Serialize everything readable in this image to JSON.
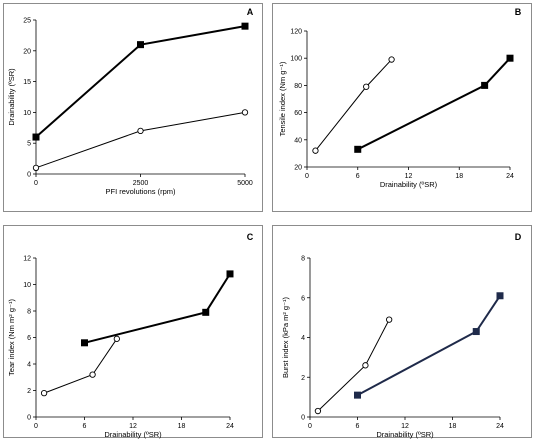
{
  "chart_data": [
    {
      "type": "line",
      "panel_label": "A",
      "xlabel": "PFI revolutions (rpm)",
      "ylabel": "Drainability (ºSR)",
      "xlim": [
        0,
        5000
      ],
      "ylim": [
        0,
        25
      ],
      "xticks": [
        0,
        2500,
        5000
      ],
      "yticks": [
        0,
        5,
        10,
        15,
        20,
        25
      ],
      "series": [
        {
          "marker": "square-filled",
          "color": "#000000",
          "linewidth": 2,
          "x": [
            0,
            2500,
            5000
          ],
          "y": [
            6,
            21,
            24
          ]
        },
        {
          "marker": "circle-open",
          "color": "#000000",
          "linewidth": 1,
          "x": [
            0,
            2500,
            5000
          ],
          "y": [
            1,
            7,
            10
          ]
        }
      ]
    },
    {
      "type": "line",
      "panel_label": "B",
      "xlabel": "Drainability (ºSR)",
      "ylabel": "Tensile index (Nm g⁻¹)",
      "xlim": [
        0,
        24
      ],
      "ylim": [
        20,
        120
      ],
      "xticks": [
        0,
        6,
        12,
        18,
        24
      ],
      "yticks": [
        20,
        40,
        60,
        80,
        100,
        120
      ],
      "series": [
        {
          "marker": "circle-open",
          "color": "#000000",
          "linewidth": 1,
          "x": [
            1,
            7,
            10
          ],
          "y": [
            32,
            79,
            99
          ]
        },
        {
          "marker": "square-filled",
          "color": "#000000",
          "linewidth": 2,
          "x": [
            6,
            21,
            24
          ],
          "y": [
            33,
            80,
            100
          ]
        }
      ]
    },
    {
      "type": "line",
      "panel_label": "C",
      "xlabel": "Drainability (ºSR)",
      "ylabel": "Tear index (Nm m² g⁻¹)",
      "xlim": [
        0,
        24
      ],
      "ylim": [
        0,
        12
      ],
      "xticks": [
        0,
        6,
        12,
        18,
        24
      ],
      "yticks": [
        0,
        2,
        4,
        6,
        8,
        10,
        12
      ],
      "series": [
        {
          "marker": "circle-open",
          "color": "#000000",
          "linewidth": 1,
          "x": [
            1,
            7,
            10
          ],
          "y": [
            1.8,
            3.2,
            5.9
          ]
        },
        {
          "marker": "square-filled",
          "color": "#000000",
          "linewidth": 2,
          "x": [
            6,
            21,
            24
          ],
          "y": [
            5.6,
            7.9,
            10.8
          ]
        }
      ]
    },
    {
      "type": "line",
      "panel_label": "D",
      "xlabel": "Drainability (ºSR)",
      "ylabel": "Burst index (kPa m² g⁻¹)",
      "xlim": [
        0,
        24
      ],
      "ylim": [
        0,
        8
      ],
      "xticks": [
        0,
        6,
        12,
        18,
        24
      ],
      "yticks": [
        0,
        2,
        4,
        6,
        8
      ],
      "series": [
        {
          "marker": "circle-open",
          "color": "#000000",
          "linewidth": 1,
          "x": [
            1,
            7,
            10
          ],
          "y": [
            0.3,
            2.6,
            4.9
          ]
        },
        {
          "marker": "square-filled",
          "color": "#1f2a4a",
          "linewidth": 2,
          "x": [
            6,
            21,
            24
          ],
          "y": [
            1.1,
            4.3,
            6.1
          ]
        }
      ]
    }
  ]
}
